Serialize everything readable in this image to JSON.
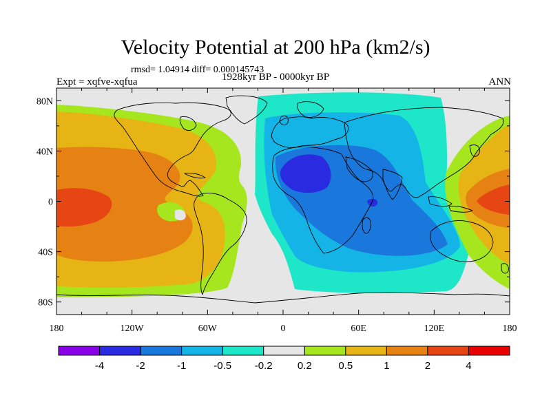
{
  "title": "Velocity Potential at 200 hPa (km2/s)",
  "subtitle": "rmsd= 1.04914 diff= 0.000145743",
  "left_string": "Expt = xqfve-xqfua",
  "center_string": "1928kyr BP - 0000kyr BP",
  "right_string": "ANN",
  "map": {
    "projection": "cylindrical-equidistant",
    "lon_range": [
      -180,
      180
    ],
    "lat_range": [
      -90,
      90
    ],
    "missing_color": "#e6e6e6",
    "x_ticks": [
      {
        "value": -180,
        "label": "180"
      },
      {
        "value": -120,
        "label": "120W"
      },
      {
        "value": -60,
        "label": "60W"
      },
      {
        "value": 0,
        "label": "0"
      },
      {
        "value": 60,
        "label": "60E"
      },
      {
        "value": 120,
        "label": "120E"
      },
      {
        "value": 180,
        "label": "180"
      }
    ],
    "y_ticks": [
      {
        "value": 80,
        "label": "80N"
      },
      {
        "value": 40,
        "label": "40N"
      },
      {
        "value": 0,
        "label": "0"
      },
      {
        "value": -40,
        "label": "40S"
      },
      {
        "value": -80,
        "label": "80S"
      }
    ]
  },
  "colorbar": {
    "colors": [
      "#8a00e6",
      "#2a2ae0",
      "#1a78dc",
      "#14b4e6",
      "#1ee6c8",
      "#e6e6e6",
      "#a6e61e",
      "#e6b414",
      "#e68214",
      "#e64614",
      "#e60000"
    ],
    "labels": [
      "-4",
      "-2",
      "-1",
      "-0.5",
      "-0.2",
      "0.2",
      "0.5",
      "1",
      "2",
      "4"
    ]
  }
}
